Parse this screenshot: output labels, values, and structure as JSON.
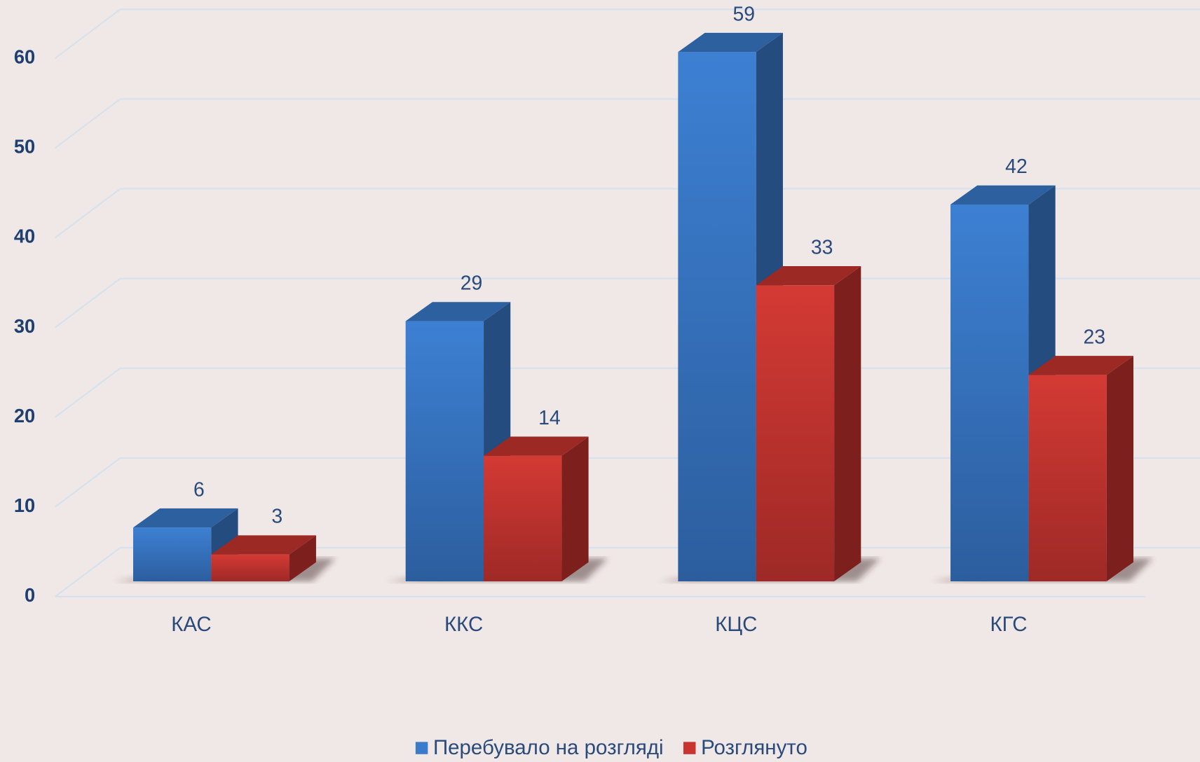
{
  "chart_data": {
    "type": "bar3d",
    "categories": [
      "КАС",
      "ККС",
      "КЦС",
      "КГС"
    ],
    "series": [
      {
        "name": "Перебувало на розгляді",
        "color": "#3a7bcc",
        "values": [
          6,
          29,
          59,
          42
        ]
      },
      {
        "name": "Розглянуто",
        "color": "#c9342f",
        "values": [
          3,
          14,
          33,
          23
        ]
      }
    ],
    "ylim": [
      0,
      60
    ],
    "yticks": [
      0,
      10,
      20,
      30,
      40,
      50,
      60
    ],
    "grid": true,
    "legend": "bottom"
  }
}
